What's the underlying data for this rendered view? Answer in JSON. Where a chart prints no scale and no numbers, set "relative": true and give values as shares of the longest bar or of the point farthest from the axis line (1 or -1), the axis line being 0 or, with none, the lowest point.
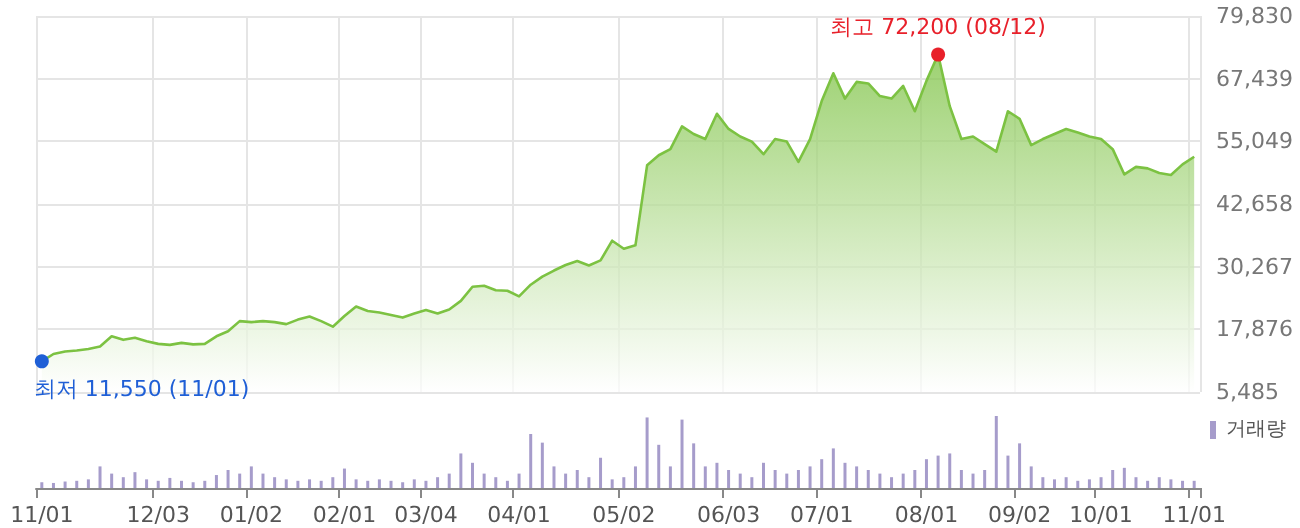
{
  "chart_data": [
    {
      "type": "area",
      "categories": [
        "11/01",
        null,
        null,
        null,
        null,
        null,
        null,
        null,
        null,
        null,
        "12/03",
        null,
        null,
        null,
        null,
        null,
        null,
        null,
        "01/02",
        null,
        null,
        null,
        null,
        null,
        null,
        null,
        "02/01",
        null,
        null,
        null,
        null,
        null,
        null,
        "03/04",
        null,
        null,
        null,
        null,
        null,
        null,
        null,
        "04/01",
        null,
        null,
        null,
        null,
        null,
        null,
        null,
        null,
        "05/02",
        null,
        null,
        null,
        null,
        null,
        null,
        null,
        null,
        "06/03",
        null,
        null,
        null,
        null,
        null,
        null,
        null,
        "07/01",
        null,
        null,
        null,
        null,
        null,
        null,
        null,
        null,
        "08/01",
        null,
        null,
        null,
        null,
        null,
        null,
        null,
        "09/02",
        null,
        null,
        null,
        null,
        null,
        null,
        "10/01",
        null,
        null,
        null,
        null,
        null,
        null,
        null,
        "11/01"
      ],
      "series": [
        {
          "color": "#7cc242",
          "values": [
            11550,
            13000,
            13500,
            13700,
            14000,
            14500,
            16500,
            15800,
            16200,
            15500,
            15000,
            14800,
            15200,
            14900,
            15000,
            16500,
            17500,
            19500,
            19300,
            19500,
            19300,
            18900,
            19800,
            20400,
            19500,
            18400,
            20500,
            22400,
            21500,
            21200,
            20700,
            20200,
            21000,
            21700,
            21000,
            21800,
            23500,
            26300,
            26500,
            25600,
            25500,
            24400,
            26700,
            28300,
            29500,
            30600,
            31400,
            30500,
            31500,
            35400,
            33800,
            34500,
            50300,
            52300,
            53500,
            58000,
            56500,
            55500,
            60500,
            57500,
            56000,
            55000,
            52500,
            55500,
            55000,
            51000,
            55500,
            63000,
            68500,
            63500,
            66800,
            66500,
            64000,
            63500,
            66000,
            61000,
            67000,
            72200,
            62000,
            55500,
            56000,
            54500,
            53000,
            61000,
            59500,
            54300,
            55500,
            56500,
            57500,
            56800,
            56000,
            55500,
            53500,
            48500,
            50000,
            49700,
            48800,
            48400,
            50500,
            52000
          ]
        }
      ],
      "ylim": [
        5485,
        79830
      ],
      "yticks": [
        {
          "value": 5485,
          "label": "5,485"
        },
        {
          "value": 17876,
          "label": "17,876"
        },
        {
          "value": 30267,
          "label": "30,267"
        },
        {
          "value": 42658,
          "label": "42,658"
        },
        {
          "value": 55049,
          "label": "55,049"
        },
        {
          "value": 67439,
          "label": "67,439"
        },
        {
          "value": 79830,
          "label": "79,830"
        }
      ],
      "grid": true,
      "tick_labels": "y",
      "legend": false,
      "annotations": [
        {
          "text": "최고 72,200 (08/12)",
          "y": 72200
        },
        {
          "text": "최저 11,550 (11/01)",
          "x": "11/01",
          "y": 11550
        }
      ]
    },
    {
      "type": "bar",
      "relative": true,
      "categories": [
        "11/01",
        null,
        null,
        null,
        null,
        null,
        null,
        null,
        null,
        null,
        "12/03",
        null,
        null,
        null,
        null,
        null,
        null,
        null,
        "01/02",
        null,
        null,
        null,
        null,
        null,
        null,
        null,
        "02/01",
        null,
        null,
        null,
        null,
        null,
        null,
        "03/04",
        null,
        null,
        null,
        null,
        null,
        null,
        null,
        "04/01",
        null,
        null,
        null,
        null,
        null,
        null,
        null,
        null,
        "05/02",
        null,
        null,
        null,
        null,
        null,
        null,
        null,
        null,
        "06/03",
        null,
        null,
        null,
        null,
        null,
        null,
        null,
        "07/01",
        null,
        null,
        null,
        null,
        null,
        null,
        null,
        null,
        "08/01",
        null,
        null,
        null,
        null,
        null,
        null,
        null,
        "09/02",
        null,
        null,
        null,
        null,
        null,
        null,
        "10/01",
        null,
        null,
        null,
        null,
        null,
        null,
        null,
        "11/01"
      ],
      "series": [
        {
          "name": "거래량",
          "color": "#a69ccb",
          "values": [
            0.08,
            0.07,
            0.09,
            0.1,
            0.12,
            0.3,
            0.2,
            0.15,
            0.22,
            0.12,
            0.1,
            0.14,
            0.1,
            0.08,
            0.1,
            0.18,
            0.25,
            0.2,
            0.3,
            0.2,
            0.15,
            0.12,
            0.1,
            0.12,
            0.1,
            0.15,
            0.27,
            0.12,
            0.1,
            0.12,
            0.1,
            0.08,
            0.12,
            0.1,
            0.15,
            0.2,
            0.48,
            0.35,
            0.2,
            0.15,
            0.1,
            0.2,
            0.75,
            0.63,
            0.3,
            0.2,
            0.25,
            0.15,
            0.42,
            0.12,
            0.15,
            0.3,
            0.98,
            0.6,
            0.3,
            0.95,
            0.62,
            0.3,
            0.35,
            0.25,
            0.2,
            0.15,
            0.35,
            0.25,
            0.2,
            0.25,
            0.3,
            0.4,
            0.55,
            0.35,
            0.3,
            0.25,
            0.2,
            0.15,
            0.2,
            0.25,
            0.4,
            0.45,
            0.48,
            0.25,
            0.2,
            0.25,
            1,
            0.45,
            0.62,
            0.3,
            0.15,
            0.12,
            0.15,
            0.1,
            0.12,
            0.15,
            0.25,
            0.28,
            0.15,
            0.1,
            0.15,
            0.12,
            0.1,
            0.1
          ]
        }
      ],
      "tick_labels": "x",
      "legend": "top right",
      "grid": false
    }
  ]
}
